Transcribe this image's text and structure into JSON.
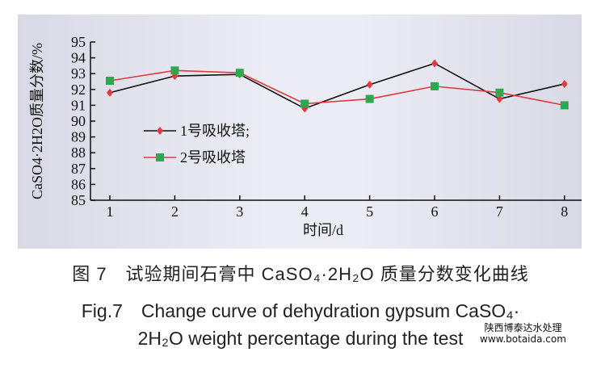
{
  "chart_data": {
    "type": "line",
    "x": [
      1,
      2,
      3,
      4,
      5,
      6,
      7,
      8
    ],
    "xlabel": "时间/d",
    "ylabel": "CaSO4·2H2O质量分数/%",
    "ylim": [
      85,
      95
    ],
    "yticks": [
      85,
      86,
      87,
      88,
      89,
      90,
      91,
      92,
      93,
      94,
      95
    ],
    "xticks": [
      1,
      2,
      3,
      4,
      5,
      6,
      7,
      8
    ],
    "grid": false,
    "legend_position": "center-left",
    "series": [
      {
        "name": "1号吸收塔;",
        "values": [
          91.8,
          92.85,
          92.95,
          90.8,
          92.3,
          93.65,
          91.4,
          92.35
        ],
        "line_color": "#111111",
        "marker_color": "#e03a3e",
        "marker": "diamond"
      },
      {
        "name": "2号吸收塔",
        "values": [
          92.55,
          93.2,
          93.05,
          91.1,
          91.4,
          92.2,
          91.8,
          91.0
        ],
        "line_color": "#e03a3e",
        "marker_color": "#2ea84f",
        "marker": "square"
      }
    ]
  },
  "caption": {
    "cn": "图 7　试验期间石膏中 CaSO₄·2H₂O 质量分数变化曲线",
    "en_line1": "Fig.7　Change curve of dehydration gypsum CaSO₄·",
    "en_line2": "2H₂O weight percentage during the test"
  },
  "watermark": {
    "line1": "陕西博泰达水处理",
    "line2": "www.botaida.com"
  }
}
